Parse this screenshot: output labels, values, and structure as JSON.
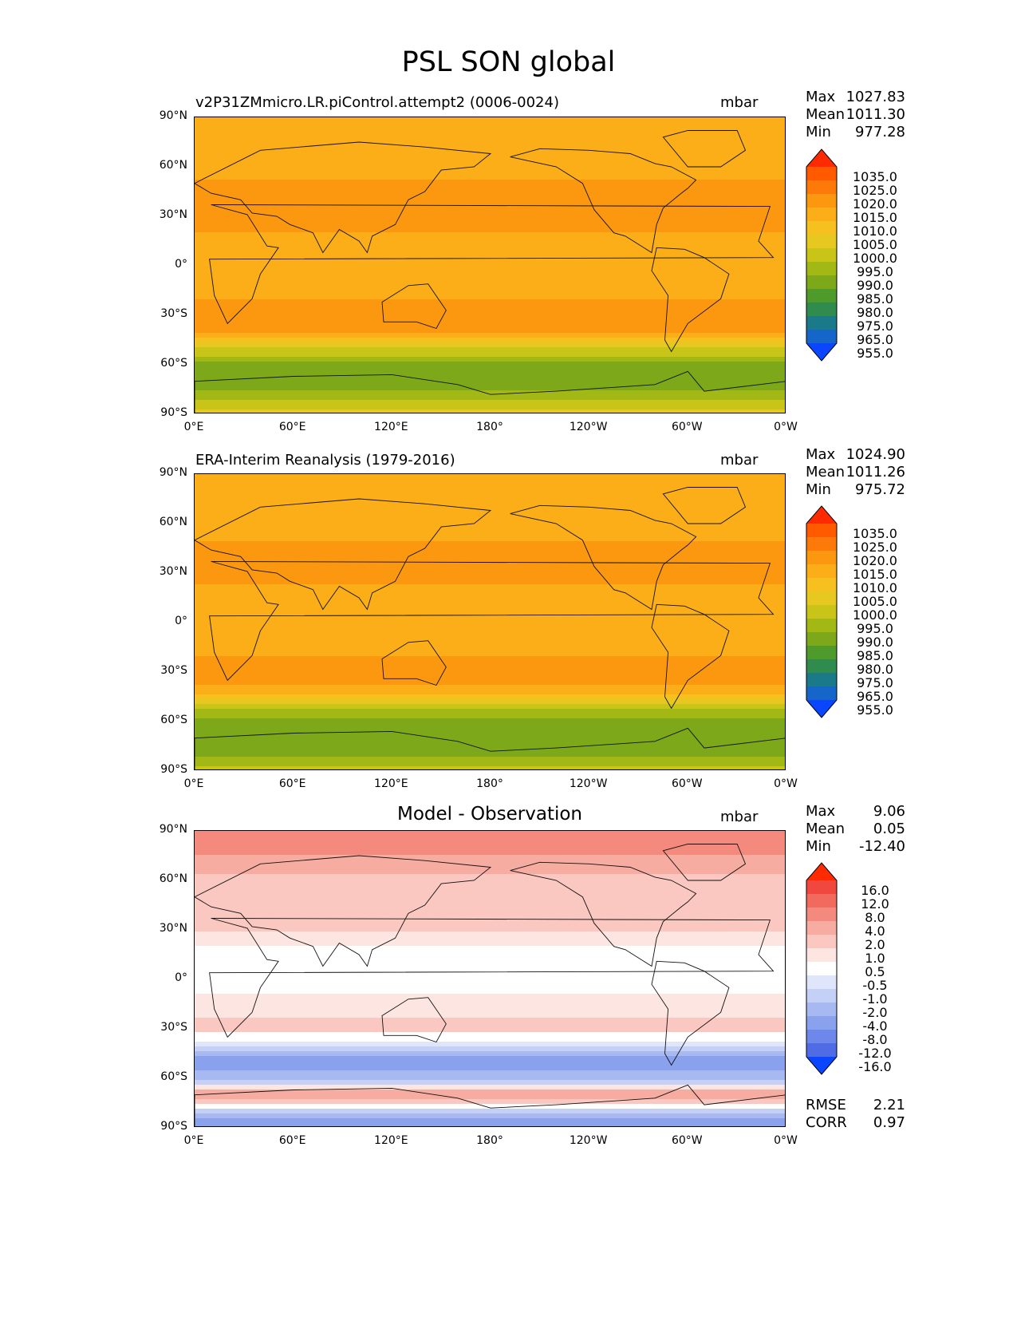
{
  "figure_title": "PSL SON global",
  "lat_labels": [
    "90°N",
    "60°N",
    "30°N",
    "0°",
    "30°S",
    "60°S",
    "90°S"
  ],
  "lon_labels": [
    "0°E",
    "60°E",
    "120°E",
    "180°",
    "120°W",
    "60°W",
    "0°W"
  ],
  "stat_keys": {
    "max": "Max",
    "mean": "Mean",
    "min": "Min",
    "rmse": "RMSE",
    "corr": "CORR"
  },
  "chart_data": [
    {
      "type": "heatmap",
      "title": "v2P31ZMmicro.LR.piControl.attempt2 (0006-0024)",
      "units": "mbar",
      "stats": {
        "max": "1027.83",
        "mean": "1011.30",
        "min": "977.28"
      },
      "levels": [
        "1035.0",
        "1025.0",
        "1020.0",
        "1015.0",
        "1010.0",
        "1005.0",
        "1000.0",
        "995.0",
        "990.0",
        "985.0",
        "980.0",
        "975.0",
        "965.0",
        "955.0"
      ],
      "colors": [
        "#ff2a00",
        "#ff5a00",
        "#fd7a0a",
        "#fc9810",
        "#fbae18",
        "#f6c01e",
        "#e6c820",
        "#c8c418",
        "#a2b814",
        "#7ca81a",
        "#4e9a2a",
        "#2f8c4e",
        "#1a7a8a",
        "#1566c8",
        "#0a46ff"
      ],
      "zonal_profile": {
        "lat": [
          90,
          75,
          60,
          45,
          30,
          15,
          0,
          -15,
          -30,
          -40,
          -50,
          -60,
          -70,
          -80,
          -90
        ],
        "value": [
          1012,
          1014,
          1013,
          1017,
          1018,
          1013,
          1010,
          1013,
          1019,
          1015,
          1000,
          987,
          986,
          993,
          1002
        ]
      }
    },
    {
      "type": "heatmap",
      "title": "ERA-Interim Reanalysis (1979-2016)",
      "units": "mbar",
      "stats": {
        "max": "1024.90",
        "mean": "1011.26",
        "min": "975.72"
      },
      "levels": [
        "1035.0",
        "1025.0",
        "1020.0",
        "1015.0",
        "1010.0",
        "1005.0",
        "1000.0",
        "995.0",
        "990.0",
        "985.0",
        "980.0",
        "975.0",
        "965.0",
        "955.0"
      ],
      "colors": [
        "#ff2a00",
        "#ff5a00",
        "#fd7a0a",
        "#fc9810",
        "#fbae18",
        "#f6c01e",
        "#e6c820",
        "#c8c418",
        "#a2b814",
        "#7ca81a",
        "#4e9a2a",
        "#2f8c4e",
        "#1a7a8a",
        "#1566c8",
        "#0a46ff"
      ],
      "zonal_profile": {
        "lat": [
          90,
          75,
          60,
          45,
          30,
          15,
          0,
          -15,
          -30,
          -40,
          -50,
          -60,
          -70,
          -80,
          -90
        ],
        "value": [
          1011,
          1012,
          1011,
          1016,
          1017,
          1012,
          1010,
          1013,
          1018,
          1014,
          998,
          986,
          985,
          990,
          998
        ]
      }
    },
    {
      "type": "heatmap",
      "title": "Model - Observation",
      "units": "mbar",
      "stats": {
        "max": "9.06",
        "mean": "0.05",
        "min": "-12.40"
      },
      "rmse": "2.21",
      "corr": "0.97",
      "levels": [
        "16.0",
        "12.0",
        "8.0",
        "4.0",
        "2.0",
        "1.0",
        "0.5",
        "-0.5",
        "-1.0",
        "-2.0",
        "-4.0",
        "-8.0",
        "-12.0",
        "-16.0"
      ],
      "colors": [
        "#ff2a00",
        "#f0483e",
        "#f26a5e",
        "#f48a7e",
        "#f7aca2",
        "#fac8c0",
        "#fde6e2",
        "#ffffff",
        "#dfe6fb",
        "#c4d0f6",
        "#a8b9f2",
        "#8aa2ee",
        "#6d87ea",
        "#4f6be6",
        "#0a46ff"
      ],
      "zonal_profile": {
        "lat": [
          90,
          75,
          60,
          45,
          30,
          15,
          0,
          -15,
          -30,
          -40,
          -50,
          -60,
          -70,
          -80,
          -90
        ],
        "value": [
          5,
          4,
          1.5,
          1,
          1,
          0.3,
          0,
          0.8,
          1.2,
          -1,
          -5,
          -3,
          4,
          -2,
          -8
        ]
      }
    }
  ]
}
